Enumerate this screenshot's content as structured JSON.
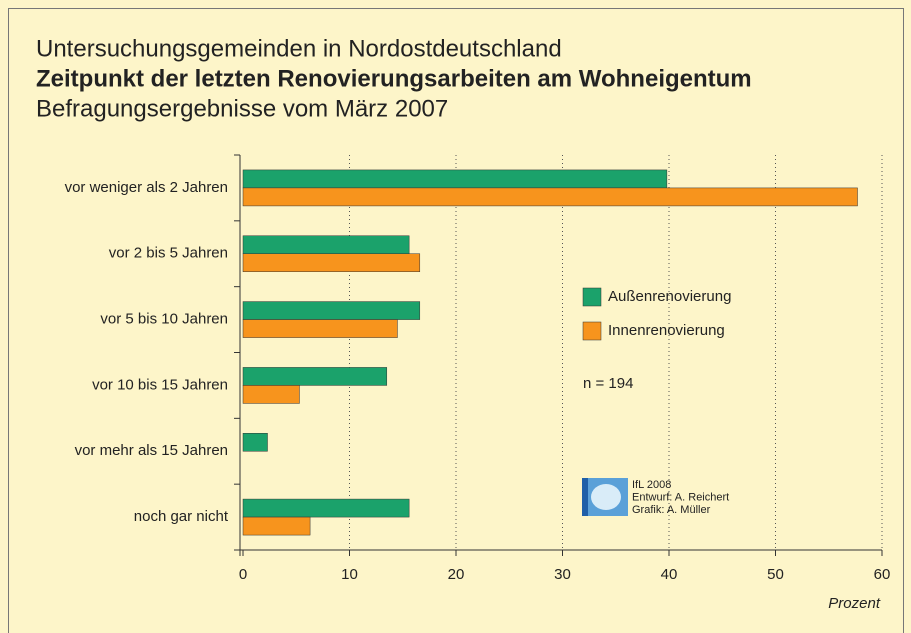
{
  "chart_data": {
    "type": "hbar",
    "supertitle": "Untersuchungsgemeinden in Nordostdeutschland",
    "title": "Zeitpunkt der letzten Renovierungsarbeiten am Wohneigentum",
    "subtitle": "Befragungsergebnisse vom März 2007",
    "categories": [
      "vor weniger als 2 Jahren",
      "vor 2 bis 5 Jahren",
      "vor 5 bis 10 Jahren",
      "vor 10 bis 15 Jahren",
      "vor mehr als 15 Jahren",
      "noch gar nicht"
    ],
    "series": [
      {
        "name": "Außenrenovierung",
        "color": "#1ba26b",
        "values": [
          39.8,
          15.6,
          16.6,
          13.5,
          2.3,
          15.6
        ]
      },
      {
        "name": "Innenrenovierung",
        "color": "#f7941d",
        "values": [
          57.7,
          16.6,
          14.5,
          5.3,
          0,
          6.3
        ]
      }
    ],
    "xlabel": "Prozent",
    "xlim": [
      0,
      60
    ],
    "xticks": [
      0,
      10,
      20,
      30,
      40,
      50,
      60
    ],
    "grid": true,
    "legend": "right",
    "annotations": [
      "n = 194"
    ],
    "credits": [
      "IfL 2008",
      "Entwurf: A. Reichert",
      "Grafik: A. Müller"
    ]
  }
}
